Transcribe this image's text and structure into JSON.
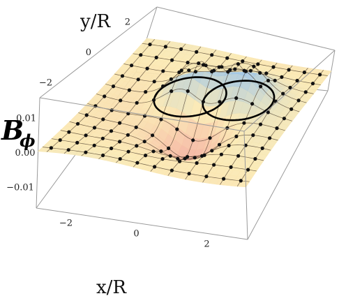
{
  "chart_data": {
    "type": "surface3d",
    "xlabel": "x/R",
    "ylabel": "y/R",
    "zlabel": "B",
    "zlabel_subscript": "ϕ",
    "x_ticks": [
      "−2",
      "0",
      "2"
    ],
    "y_ticks": [
      "−2",
      "0",
      "2"
    ],
    "z_ticks": [
      "0.01",
      "0.00",
      "−0.01"
    ],
    "xlim": [
      -3,
      3
    ],
    "ylim": [
      -3,
      3
    ],
    "zlim": [
      -0.016,
      0.016
    ],
    "grid_x": [
      -2.75,
      -2.25,
      -1.75,
      -1.25,
      -0.75,
      -0.25,
      0.25,
      0.75,
      1.25,
      1.75,
      2.25,
      2.75
    ],
    "grid_y": [
      -2.75,
      -2.25,
      -1.75,
      -1.25,
      -0.75,
      -0.25,
      0.25,
      0.75,
      1.25,
      1.75,
      2.25,
      2.75
    ],
    "peak_value": 0.016,
    "ring_radius": 1.0,
    "colors": {
      "surface_low": "#f2a29a",
      "surface_mid": "#fbe9b2",
      "surface_high": "#9cc4e6",
      "mesh": "#3a2a1c",
      "dots": "#111111",
      "box": "#9a9a9a"
    }
  }
}
